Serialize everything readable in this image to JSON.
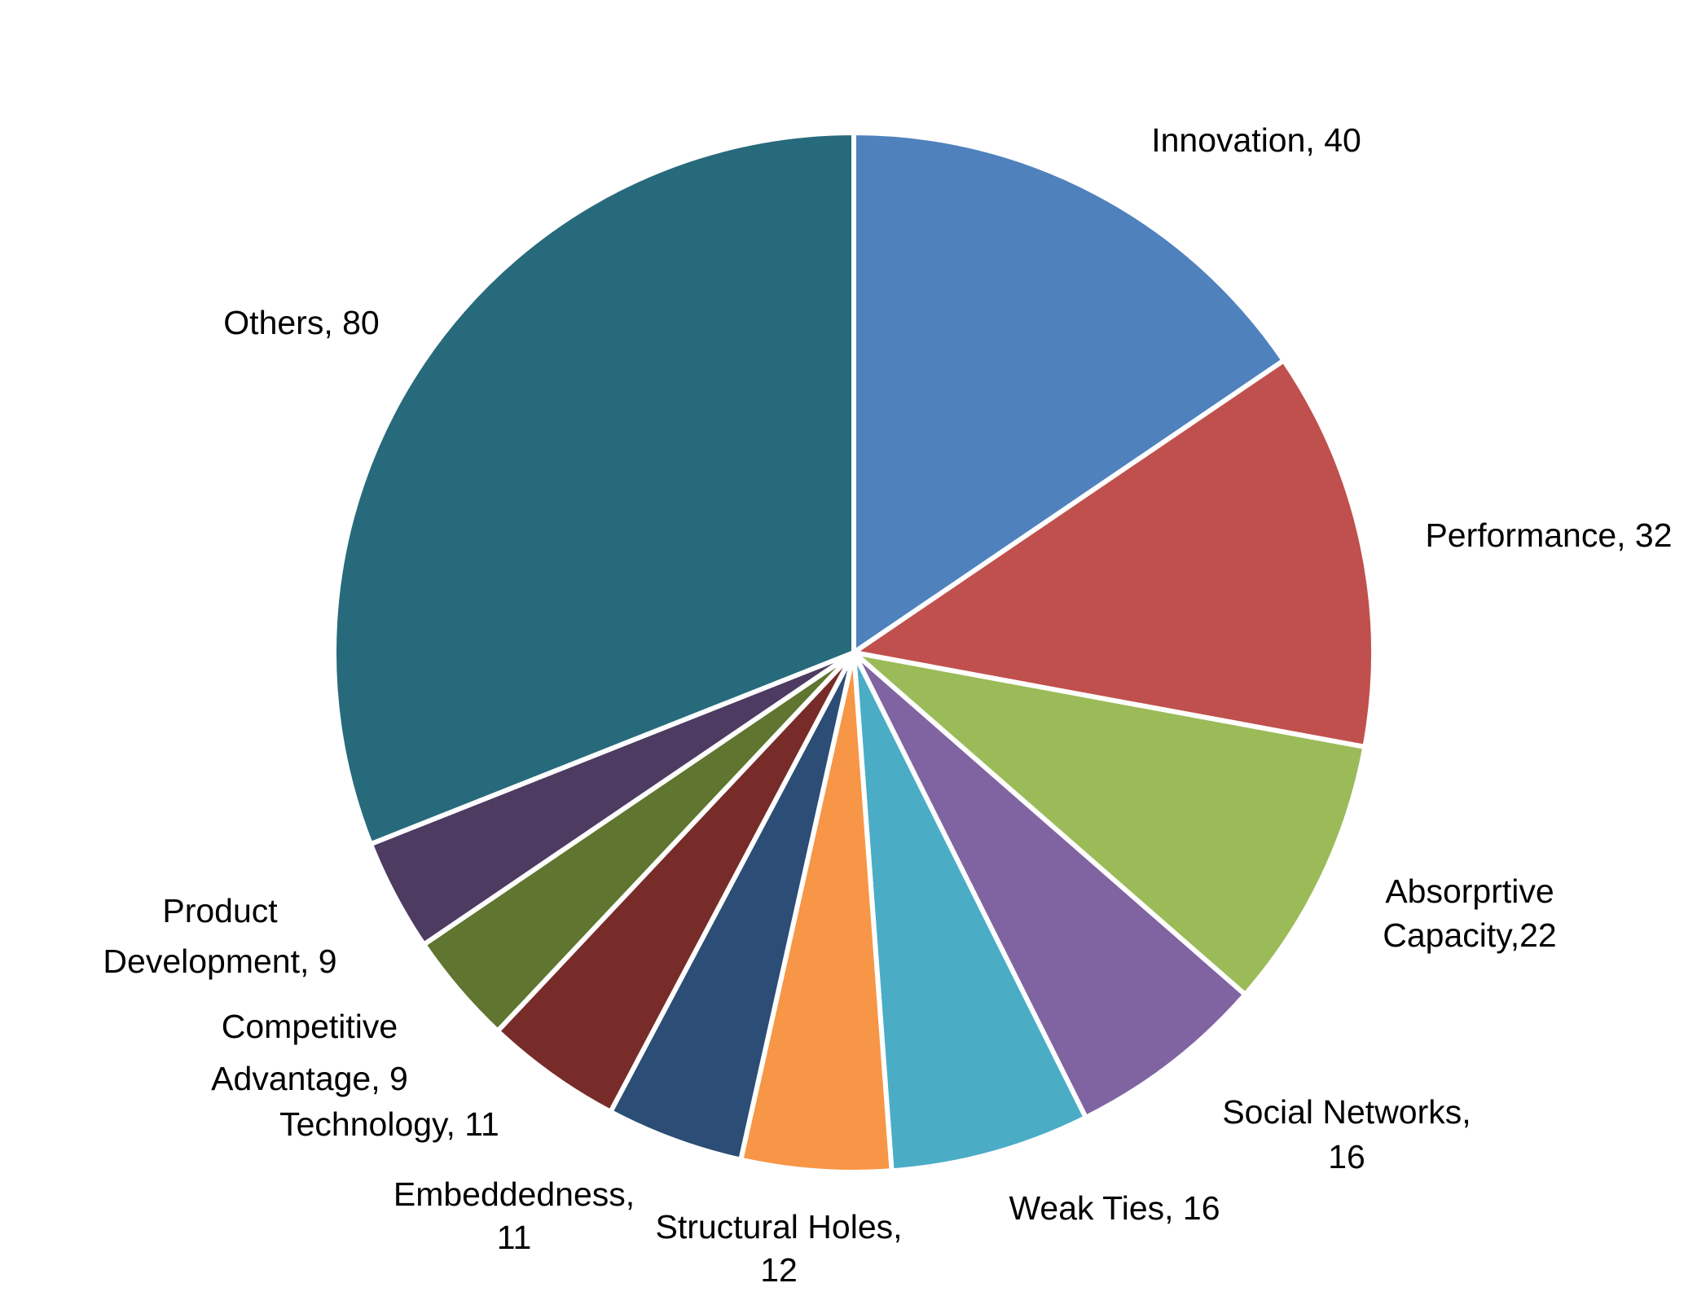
{
  "chart_data": {
    "type": "pie",
    "values": [
      40,
      32,
      22,
      16,
      16,
      12,
      11,
      11,
      9,
      9,
      80
    ],
    "value_labels": [
      [
        "Innovation, 40"
      ],
      [
        "Performance, 32"
      ],
      [
        "Absorprtive",
        "Capacity,22"
      ],
      [
        "Social Networks,",
        "16"
      ],
      [
        "Weak Ties, 16"
      ],
      [
        "Structural Holes,",
        "12"
      ],
      [
        "Embeddedness,",
        "11"
      ],
      [
        "Technology, 11"
      ],
      [
        "Competitive",
        "Advantage, 9"
      ],
      [
        "Product",
        "Development, 9"
      ],
      [
        "Others, 80"
      ]
    ],
    "colors": [
      "#4f81bd",
      "#c0504d",
      "#9bbb59",
      "#8064a2",
      "#4bacc6",
      "#f79646",
      "#2c4d75",
      "#772c2a",
      "#5f7530",
      "#4d3b62",
      "#276a7c"
    ]
  }
}
